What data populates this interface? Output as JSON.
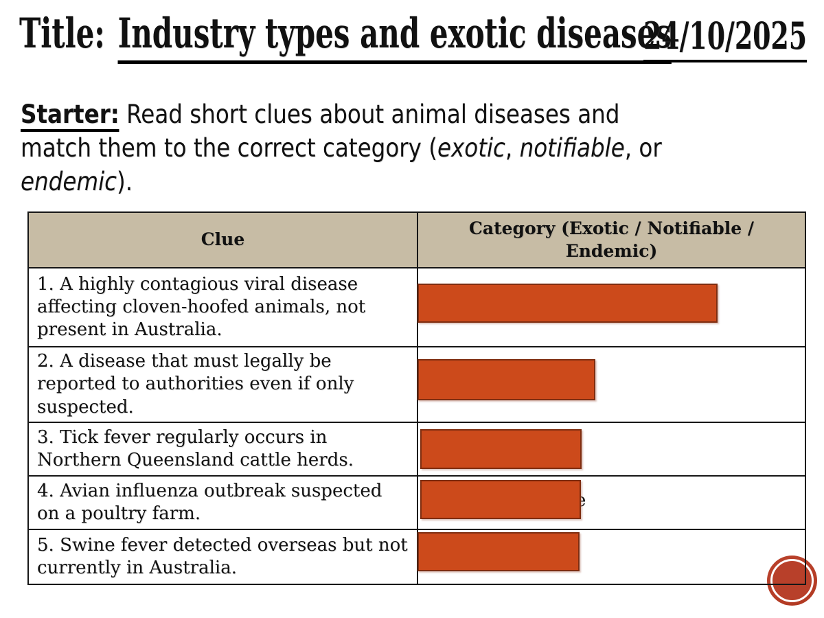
{
  "header": {
    "title_prefix": "Title: ",
    "title_underlined": "Industry types and exotic diseases",
    "date": "24/10/2025"
  },
  "starter": {
    "label": "Starter:",
    "after_label": " Read short clues about animal diseases and",
    "line2_start": "match them to the correct category (",
    "term1": "exotic",
    "sep1": ", ",
    "term2": "notifiable",
    "sep2": ", or",
    "term3": "endemic",
    "closing": ")."
  },
  "table": {
    "col1_header": "Clue",
    "col2_header": "Category (Exotic / Notifiable / Endemic)",
    "rows": [
      {
        "clue": "1. A highly contagious viral disease affecting cloven-hoofed animals, not present in Australia."
      },
      {
        "clue": "2. A disease that must legally be reported to authorities even if only suspected."
      },
      {
        "clue": "3. Tick fever regularly occurs in Northern Queensland cattle herds."
      },
      {
        "clue": "4. Avian influenza outbreak suspected on a poultry farm.",
        "peek_text": "e"
      },
      {
        "clue": "5. Swine fever detected overseas but not currently in Australia."
      }
    ]
  },
  "colors": {
    "cover_fill": "#cc4a1b",
    "cover_border": "#7e2d10",
    "header_bg": "#c7bca5",
    "stamp_red": "#b1371f",
    "text": "#111111"
  }
}
